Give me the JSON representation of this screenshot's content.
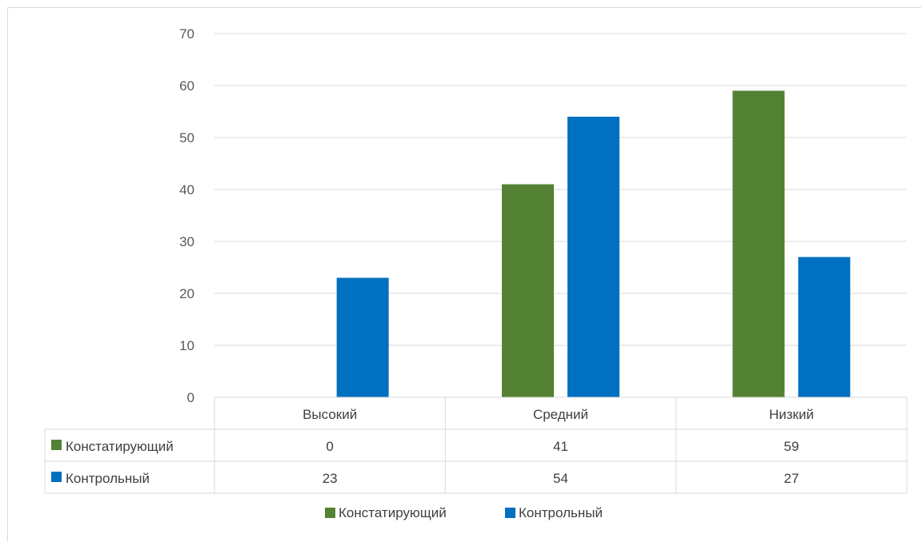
{
  "chart_data": {
    "type": "bar",
    "categories": [
      "Высокий",
      "Средний",
      "Низкий"
    ],
    "series": [
      {
        "name": "Констатирующий",
        "values": [
          0,
          41,
          59
        ],
        "color": "#548235"
      },
      {
        "name": "Контрольный",
        "values": [
          23,
          54,
          27
        ],
        "color": "#0070c0"
      }
    ],
    "yticks": [
      "0",
      "10",
      "20",
      "30",
      "40",
      "50",
      "60",
      "70"
    ],
    "ylim": [
      0,
      70
    ],
    "grid": true,
    "data_table": true,
    "legend_position": "bottom"
  }
}
